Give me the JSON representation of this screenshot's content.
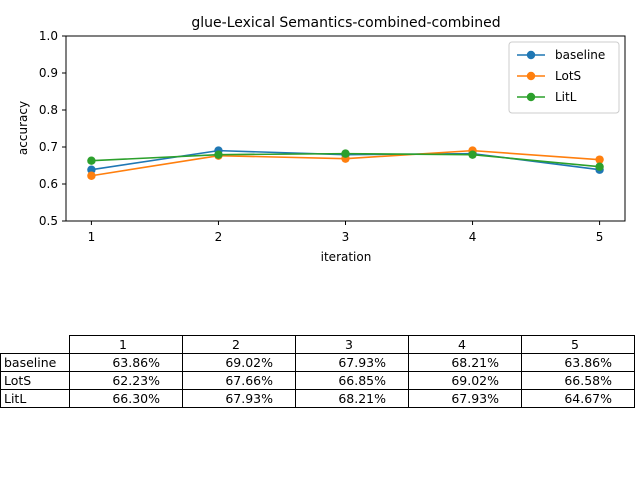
{
  "chart_data": {
    "type": "line",
    "title": "glue-Lexical Semantics-combined-combined",
    "xlabel": "iteration",
    "ylabel": "accuracy",
    "x": [
      1,
      2,
      3,
      4,
      5
    ],
    "xlim": [
      0.8,
      5.2
    ],
    "ylim": [
      0.5,
      1.0
    ],
    "xticks": [
      "1",
      "2",
      "3",
      "4",
      "5"
    ],
    "yticks": [
      "0.5",
      "0.6",
      "0.7",
      "0.8",
      "0.9",
      "1.0"
    ],
    "grid": false,
    "legend_position": "top-right",
    "series": [
      {
        "name": "baseline",
        "color": "#1f77b4",
        "values": [
          0.6386,
          0.6902,
          0.6793,
          0.6821,
          0.6386
        ]
      },
      {
        "name": "LotS",
        "color": "#ff7f0e",
        "values": [
          0.6223,
          0.6766,
          0.6685,
          0.6902,
          0.6658
        ]
      },
      {
        "name": "LitL",
        "color": "#2ca02c",
        "values": [
          0.663,
          0.6793,
          0.6821,
          0.6793,
          0.6467
        ]
      }
    ]
  },
  "table": {
    "columns": [
      "1",
      "2",
      "3",
      "4",
      "5"
    ],
    "rows": [
      {
        "label": "baseline",
        "cells": [
          "63.86%",
          "69.02%",
          "67.93%",
          "68.21%",
          "63.86%"
        ]
      },
      {
        "label": "LotS",
        "cells": [
          "62.23%",
          "67.66%",
          "66.85%",
          "69.02%",
          "66.58%"
        ]
      },
      {
        "label": "LitL",
        "cells": [
          "66.30%",
          "67.93%",
          "68.21%",
          "67.93%",
          "64.67%"
        ]
      }
    ]
  }
}
